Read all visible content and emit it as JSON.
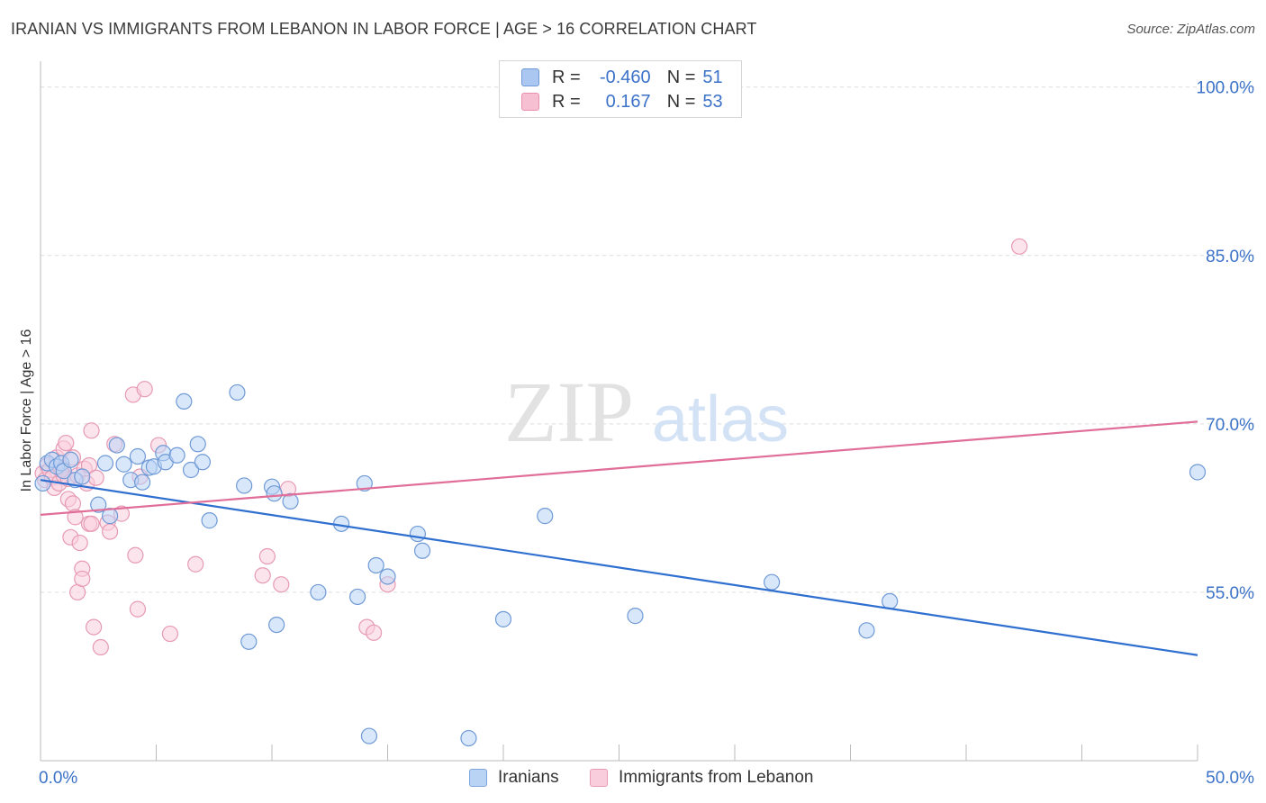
{
  "header": {
    "title": "IRANIAN VS IMMIGRANTS FROM LEBANON IN LABOR FORCE | AGE > 16 CORRELATION CHART",
    "source": "Source: ZipAtlas.com"
  },
  "watermark": {
    "zip": "ZIP",
    "atlas": "atlas"
  },
  "legend": {
    "rows": [
      {
        "r_label": "R =",
        "r_value": "-0.460",
        "n_label": "N =",
        "n_value": "51",
        "color": "#a9c7f0",
        "border": "#6f9ad6"
      },
      {
        "r_label": "R =",
        "r_value": "0.167",
        "n_label": "N =",
        "n_value": "53",
        "color": "#f7c0d2",
        "border": "#e890ad"
      }
    ]
  },
  "bottom_legend": [
    {
      "label": "Iranians",
      "color": "#b9d3f5",
      "border": "#7ea6dc"
    },
    {
      "label": "Immigrants from Lebanon",
      "color": "#f9cddc",
      "border": "#e79ab5"
    }
  ],
  "chart_data": {
    "type": "scatter",
    "title": "IRANIAN VS IMMIGRANTS FROM LEBANON IN LABOR FORCE | AGE > 16 CORRELATION CHART",
    "ylabel": "In Labor Force | Age > 16",
    "xlabel": "",
    "xlim": [
      0,
      50
    ],
    "ylim": [
      40,
      101.5
    ],
    "x_tick_labels": [
      "0.0%",
      "50.0%"
    ],
    "y_ticks": [
      55,
      70,
      85,
      100
    ],
    "y_tick_labels": [
      "55.0%",
      "70.0%",
      "85.0%",
      "100.0%"
    ],
    "grid": true,
    "series": [
      {
        "name": "Iranians",
        "color": "#6f9ad6",
        "fill": "#b9d3f5",
        "trend": {
          "color": "#2f6fd0",
          "x": [
            0,
            50
          ],
          "y": [
            65.0,
            49.4
          ]
        },
        "points": [
          [
            0.1,
            64.7
          ],
          [
            0.3,
            66.5
          ],
          [
            0.5,
            66.8
          ],
          [
            0.7,
            66.2
          ],
          [
            0.9,
            66.5
          ],
          [
            1.0,
            65.8
          ],
          [
            1.3,
            66.8
          ],
          [
            1.5,
            65.0
          ],
          [
            1.8,
            65.3
          ],
          [
            2.5,
            62.8
          ],
          [
            3.0,
            61.8
          ],
          [
            3.3,
            68.1
          ],
          [
            2.8,
            66.5
          ],
          [
            3.6,
            66.4
          ],
          [
            3.9,
            65.0
          ],
          [
            4.2,
            67.1
          ],
          [
            4.4,
            64.8
          ],
          [
            4.7,
            66.1
          ],
          [
            4.9,
            66.2
          ],
          [
            5.3,
            67.4
          ],
          [
            5.4,
            66.6
          ],
          [
            5.9,
            67.2
          ],
          [
            6.2,
            72.0
          ],
          [
            6.5,
            65.9
          ],
          [
            6.8,
            68.2
          ],
          [
            7.0,
            66.6
          ],
          [
            7.3,
            61.4
          ],
          [
            8.5,
            72.8
          ],
          [
            8.8,
            64.5
          ],
          [
            9.0,
            50.6
          ],
          [
            10.0,
            64.4
          ],
          [
            10.1,
            63.8
          ],
          [
            10.2,
            52.1
          ],
          [
            10.8,
            63.1
          ],
          [
            12.0,
            55.0
          ],
          [
            13.0,
            61.1
          ],
          [
            13.7,
            54.6
          ],
          [
            14.0,
            64.7
          ],
          [
            14.2,
            42.2
          ],
          [
            14.5,
            57.4
          ],
          [
            15.0,
            56.4
          ],
          [
            16.3,
            60.2
          ],
          [
            16.5,
            58.7
          ],
          [
            18.5,
            42.0
          ],
          [
            20.0,
            52.6
          ],
          [
            21.8,
            61.8
          ],
          [
            25.7,
            52.9
          ],
          [
            31.6,
            55.9
          ],
          [
            35.7,
            51.6
          ],
          [
            36.7,
            54.2
          ],
          [
            50.0,
            65.7
          ]
        ]
      },
      {
        "name": "Immigrants from Lebanon",
        "color": "#e79ab5",
        "fill": "#f9cddc",
        "trend": {
          "color": "#e06e98",
          "x": [
            0,
            50
          ],
          "y": [
            61.9,
            70.2
          ]
        },
        "points": [
          [
            0.1,
            65.6
          ],
          [
            0.2,
            65.0
          ],
          [
            0.3,
            66.3
          ],
          [
            0.4,
            65.9
          ],
          [
            0.5,
            65.2
          ],
          [
            0.6,
            64.3
          ],
          [
            0.7,
            67.0
          ],
          [
            0.8,
            64.7
          ],
          [
            0.9,
            66.1
          ],
          [
            1.0,
            65.4
          ],
          [
            1.0,
            67.8
          ],
          [
            1.1,
            68.3
          ],
          [
            1.2,
            63.3
          ],
          [
            1.2,
            65.1
          ],
          [
            1.3,
            59.9
          ],
          [
            1.4,
            62.9
          ],
          [
            1.4,
            67.0
          ],
          [
            1.5,
            61.7
          ],
          [
            1.6,
            55.0
          ],
          [
            1.6,
            65.4
          ],
          [
            1.7,
            59.4
          ],
          [
            1.8,
            57.1
          ],
          [
            1.8,
            56.2
          ],
          [
            1.9,
            66.0
          ],
          [
            2.0,
            64.7
          ],
          [
            2.1,
            61.1
          ],
          [
            2.1,
            66.3
          ],
          [
            2.2,
            61.1
          ],
          [
            2.2,
            69.4
          ],
          [
            2.3,
            51.9
          ],
          [
            2.4,
            65.2
          ],
          [
            2.6,
            50.1
          ],
          [
            2.9,
            61.2
          ],
          [
            3.0,
            60.4
          ],
          [
            3.2,
            68.2
          ],
          [
            3.5,
            62.0
          ],
          [
            4.0,
            72.6
          ],
          [
            4.1,
            58.3
          ],
          [
            4.2,
            53.5
          ],
          [
            4.3,
            65.3
          ],
          [
            4.5,
            73.1
          ],
          [
            5.1,
            68.1
          ],
          [
            5.6,
            51.3
          ],
          [
            6.7,
            57.5
          ],
          [
            9.6,
            56.5
          ],
          [
            9.8,
            58.2
          ],
          [
            10.4,
            55.7
          ],
          [
            10.7,
            64.2
          ],
          [
            14.1,
            51.9
          ],
          [
            14.4,
            51.4
          ],
          [
            15.0,
            55.7
          ],
          [
            42.3,
            85.8
          ],
          [
            0.9,
            65.9
          ]
        ]
      }
    ]
  }
}
